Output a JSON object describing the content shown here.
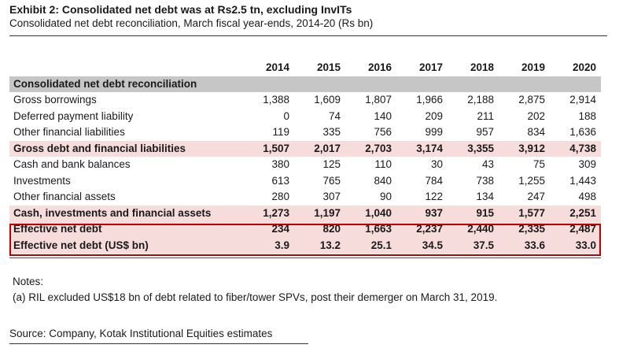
{
  "header": {
    "title": "Exhibit 2: Consolidated net debt was at Rs2.5 tn, excluding InvITs",
    "subtitle": "Consolidated net debt reconciliation, March fiscal year-ends, 2014-20 (Rs bn)"
  },
  "table": {
    "years": [
      "2014",
      "2015",
      "2016",
      "2017",
      "2018",
      "2019",
      "2020"
    ],
    "section_label": "Consolidated net debt reconciliation",
    "rows": [
      {
        "label": "Gross borrowings",
        "values": [
          "1,388",
          "1,609",
          "1,807",
          "1,966",
          "2,188",
          "2,875",
          "2,914"
        ]
      },
      {
        "label": "Deferred payment liability",
        "values": [
          "0",
          "74",
          "140",
          "209",
          "211",
          "202",
          "188"
        ]
      },
      {
        "label": "Other financial liabilities",
        "values": [
          "119",
          "335",
          "756",
          "999",
          "957",
          "834",
          "1,636"
        ]
      },
      {
        "label": "Gross debt and financial liabilities",
        "values": [
          "1,507",
          "2,017",
          "2,703",
          "3,174",
          "3,355",
          "3,912",
          "4,738"
        ]
      },
      {
        "label": "Cash and bank balances",
        "values": [
          "380",
          "125",
          "110",
          "30",
          "43",
          "75",
          "309"
        ]
      },
      {
        "label": "Investments",
        "values": [
          "613",
          "765",
          "840",
          "784",
          "738",
          "1,255",
          "1,443"
        ]
      },
      {
        "label": "Other financial assets",
        "values": [
          "280",
          "307",
          "90",
          "122",
          "134",
          "247",
          "498"
        ]
      },
      {
        "label": "Cash, investments and financial assets",
        "values": [
          "1,273",
          "1,197",
          "1,040",
          "937",
          "915",
          "1,577",
          "2,251"
        ]
      },
      {
        "label": "Effective net debt",
        "values": [
          "234",
          "820",
          "1,663",
          "2,237",
          "2,440",
          "2,335",
          "2,487"
        ]
      },
      {
        "label": "Effective net debt (US$ bn)",
        "values": [
          "3.9",
          "13.2",
          "25.1",
          "34.5",
          "37.5",
          "33.6",
          "33.0"
        ]
      }
    ]
  },
  "notes": {
    "heading": "Notes:",
    "items": [
      "(a) RIL excluded US$18 bn of debt related to fiber/tower SPVs, post their demerger on March 31, 2019."
    ]
  },
  "source": "Source: Company, Kotak Institutional Equities estimates"
}
